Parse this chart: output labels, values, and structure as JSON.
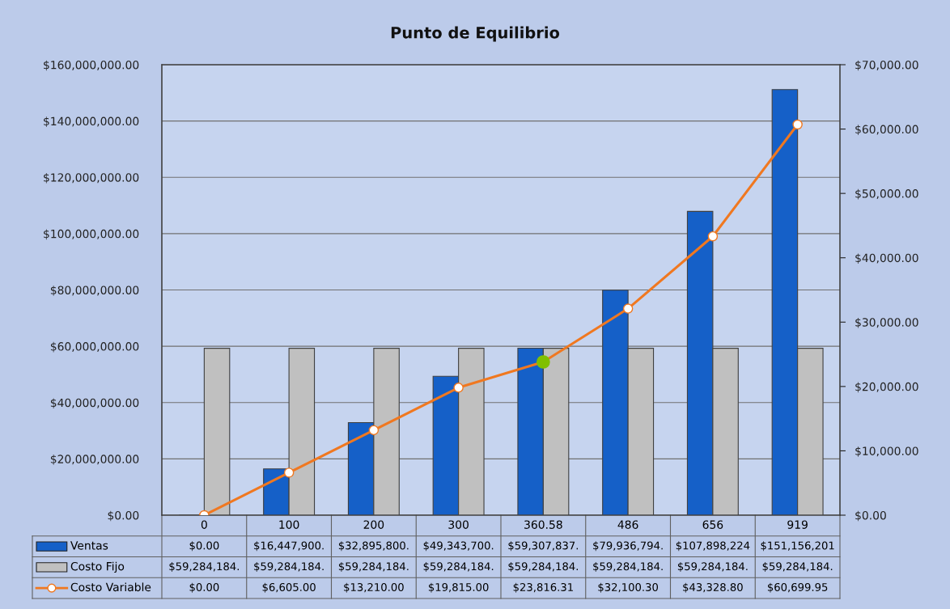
{
  "chart_data": {
    "type": "bar",
    "title": "Punto de Equilibrio",
    "categories": [
      "0",
      "100",
      "200",
      "300",
      "360.58",
      "486",
      "656",
      "919"
    ],
    "series": [
      {
        "name": "Ventas",
        "color": "#1560c8",
        "values": [
          0,
          16447900,
          32895800,
          49343700,
          59307837,
          79936794,
          107898224,
          151156201
        ],
        "value_labels": [
          "$0.00",
          "$16,447,900.",
          "$32,895,800.",
          "$49,343,700.",
          "$59,307,837.",
          "$79,936,794.",
          "$107,898,224",
          "$151,156,201"
        ]
      },
      {
        "name": "Costo Fijo",
        "color": "#c0c0c0",
        "values": [
          59284184,
          59284184,
          59284184,
          59284184,
          59284184,
          59284184,
          59284184,
          59284184
        ],
        "value_labels": [
          "$59,284,184.",
          "$59,284,184.",
          "$59,284,184.",
          "$59,284,184.",
          "$59,284,184.",
          "$59,284,184.",
          "$59,284,184.",
          "$59,284,184."
        ]
      },
      {
        "name": "Costo Variable",
        "type": "line",
        "axis": "y2",
        "color": "#f07820",
        "marker": "circle",
        "colors": [
          "#ffffff",
          "#ffffff",
          "#ffffff",
          "#ffffff",
          "#80c000",
          "#ffffff",
          "#ffffff",
          "#ffffff"
        ],
        "values": [
          0,
          6605,
          13210,
          19815,
          23816.31,
          32100.3,
          43328.8,
          60699.95
        ],
        "value_labels": [
          "$0.00",
          "$6,605.00",
          "$13,210.00",
          "$19,815.00",
          "$23,816.31",
          "$32,100.30",
          "$43,328.80",
          "$60,699.95"
        ]
      }
    ],
    "ylim": [
      0,
      160000000
    ],
    "yticks": [
      {
        "value": 0,
        "label": "$0.00"
      },
      {
        "value": 20000000,
        "label": "$20,000,000.00"
      },
      {
        "value": 40000000,
        "label": "$40,000,000.00"
      },
      {
        "value": 60000000,
        "label": "$60,000,000.00"
      },
      {
        "value": 80000000,
        "label": "$80,000,000.00"
      },
      {
        "value": 100000000,
        "label": "$100,000,000.00"
      },
      {
        "value": 120000000,
        "label": "$120,000,000.00"
      },
      {
        "value": 140000000,
        "label": "$140,000,000.00"
      },
      {
        "value": 160000000,
        "label": "$160,000,000.00"
      }
    ],
    "y2lim": [
      0,
      70000
    ],
    "y2ticks": [
      {
        "value": 0,
        "label": "$0.00"
      },
      {
        "value": 10000,
        "label": "$10,000.00"
      },
      {
        "value": 20000,
        "label": "$20,000.00"
      },
      {
        "value": 30000,
        "label": "$30,000.00"
      },
      {
        "value": 40000,
        "label": "$40,000.00"
      },
      {
        "value": 50000,
        "label": "$50,000.00"
      },
      {
        "value": 60000,
        "label": "$60,000.00"
      },
      {
        "value": 70000,
        "label": "$70,000.00"
      }
    ],
    "grid": "y",
    "legend": "bottom"
  }
}
